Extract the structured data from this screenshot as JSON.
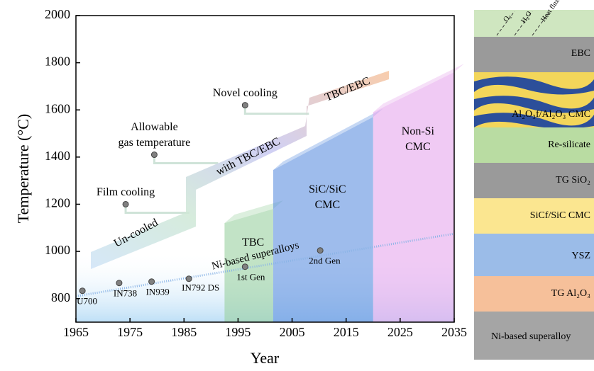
{
  "chart_data": {
    "type": "scatter",
    "xlabel": "Year",
    "ylabel": "Temperature (°C)",
    "xlim": [
      1965,
      2035
    ],
    "ylim": [
      700,
      2000
    ],
    "xticks": [
      1965,
      1975,
      1985,
      1995,
      2005,
      2015,
      2025,
      2035
    ],
    "yticks": [
      800,
      1000,
      1200,
      1400,
      1600,
      1800,
      2000
    ],
    "alloys": {
      "x": [
        1966.2,
        1973,
        1979,
        1985.9,
        1996.3,
        2010.2
      ],
      "values": [
        833,
        866,
        872,
        884,
        935,
        1004
      ],
      "labels": [
        "U700",
        "IN738",
        "IN939",
        "IN792 DS",
        "1st Gen",
        "2nd Gen"
      ],
      "color": "#808080"
    },
    "cooling": {
      "x": [
        1974.2,
        1979.5,
        1996.3
      ],
      "values": [
        1200,
        1410,
        1620
      ],
      "labels": [
        [
          "Film cooling"
        ],
        [
          "Allowable",
          "gas temperature"
        ],
        [
          "Novel cooling"
        ]
      ],
      "color": "#808080"
    },
    "trend": {
      "name": "Ni-based superalloys",
      "x": [
        1965,
        2035
      ],
      "values": [
        810,
        1075
      ],
      "color": "#8ab4e6"
    },
    "regions": [
      {
        "labels": [
          "TBC"
        ],
        "x": [
          1992.5,
          2001.5
        ],
        "values": [
          1120,
          1180
        ],
        "color": "#9ad0a0"
      },
      {
        "labels": [
          "SiC/SiC",
          "CMC"
        ],
        "x": [
          2001.5,
          2020
        ],
        "values": [
          1345,
          1570
        ],
        "color": "#5d8fe0"
      },
      {
        "labels": [
          "Non-Si",
          "CMC"
        ],
        "x": [
          2020,
          2035
        ],
        "values": [
          1590,
          1760
        ],
        "color": "#e6a6ec"
      }
    ],
    "ribbon_labels": [
      "Un-cooled",
      "with TBC/EBC",
      "TBC/EBC"
    ]
  },
  "schematic": {
    "top_labels": [
      "O₂",
      "H₂O",
      "Heat flux"
    ],
    "layers": [
      "EBC",
      "Al₂O₃f/Al₂O₃ CMC",
      "Re-silicate",
      "TG SiO₂",
      "SiCf/SiC CMC",
      "YSZ",
      "TG Al₂O₃",
      "Ni-based superalloy"
    ]
  }
}
